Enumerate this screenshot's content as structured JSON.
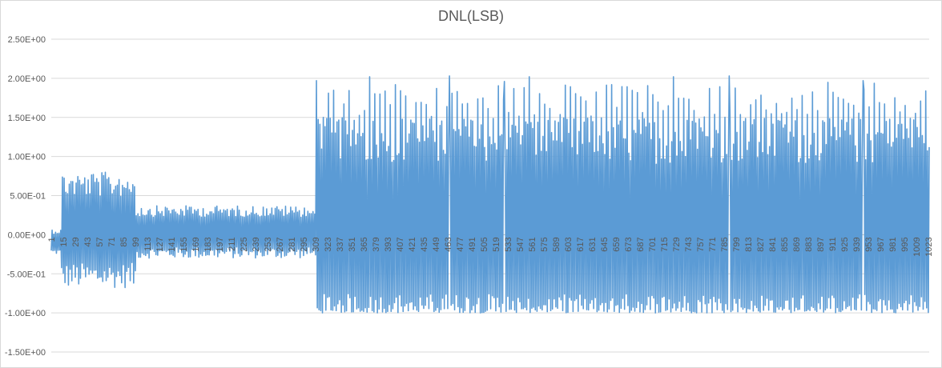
{
  "chart_data": {
    "type": "line",
    "title": "DNL(LSB)",
    "xlabel": "",
    "ylabel": "",
    "ylim": [
      -1.5,
      2.5
    ],
    "y_ticks": [
      2.5,
      2.0,
      1.5,
      1.0,
      0.5,
      0.0,
      -0.5,
      -1.0,
      -1.5
    ],
    "y_tick_labels": [
      "2.50E+00",
      "2.00E+00",
      "1.50E+00",
      "1.00E+00",
      "5.00E-01",
      "0.00E+00",
      "-5.00E-01",
      "-1.00E+00",
      "-1.50E+00"
    ],
    "x_range": [
      1,
      1024
    ],
    "x_tick_labels": [
      "1",
      "15",
      "29",
      "43",
      "57",
      "71",
      "85",
      "99",
      "113",
      "127",
      "141",
      "155",
      "169",
      "183",
      "197",
      "211",
      "225",
      "239",
      "253",
      "267",
      "281",
      "295",
      "309",
      "323",
      "337",
      "351",
      "365",
      "379",
      "393",
      "407",
      "421",
      "435",
      "449",
      "463",
      "477",
      "491",
      "505",
      "519",
      "533",
      "547",
      "561",
      "575",
      "589",
      "603",
      "617",
      "631",
      "645",
      "659",
      "673",
      "687",
      "701",
      "715",
      "729",
      "743",
      "757",
      "771",
      "785",
      "799",
      "813",
      "827",
      "841",
      "855",
      "869",
      "883",
      "897",
      "911",
      "925",
      "939",
      "953",
      "967",
      "981",
      "995",
      "1009",
      "1023"
    ],
    "grid": "horizontal",
    "legend": "none",
    "series": [
      {
        "color": "#5b9bd5",
        "segments": [
          {
            "x_start": 1,
            "x_end": 12,
            "min": -0.25,
            "max": 0.08
          },
          {
            "x_start": 13,
            "x_end": 99,
            "min": -0.68,
            "max": 0.8
          },
          {
            "x_start": 100,
            "x_end": 309,
            "min": -0.3,
            "max": 0.37
          },
          {
            "x_start": 310,
            "x_end": 1024,
            "min": -1.0,
            "max": 2.04
          }
        ],
        "peaks": [
          {
            "x": 310,
            "y": 1.97
          },
          {
            "x": 372,
            "y": 2.02
          },
          {
            "x": 465,
            "y": 2.03
          },
          {
            "x": 529,
            "y": 1.96
          },
          {
            "x": 558,
            "y": 2.02
          },
          {
            "x": 726,
            "y": 2.02
          },
          {
            "x": 791,
            "y": 2.03
          },
          {
            "x": 947,
            "y": 1.97
          }
        ]
      }
    ]
  }
}
